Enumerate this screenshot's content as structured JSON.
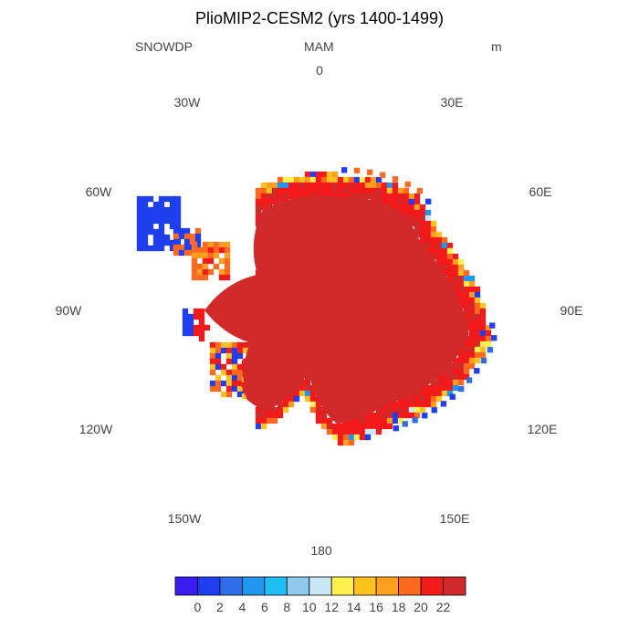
{
  "header": {
    "title": "PlioMIP2-CESM2 (yrs 1400-1499)",
    "variable": "SNOWDP",
    "season": "MAM",
    "units": "m"
  },
  "longitude_labels": {
    "lon_0": "0",
    "lon_30e": "30E",
    "lon_60e": "60E",
    "lon_90e": "90E",
    "lon_120e": "120E",
    "lon_150e": "150E",
    "lon_180": "180",
    "lon_150w": "150W",
    "lon_120w": "120W",
    "lon_90w": "90W",
    "lon_60w": "60W",
    "lon_30w": "30W"
  },
  "colorbar": {
    "colors": [
      "#3b1cf0",
      "#1f3ef0",
      "#2e6ee8",
      "#1f96f0",
      "#1fbff5",
      "#91c8ee",
      "#c8e6f5",
      "#fff04e",
      "#ffc21f",
      "#ff9f1f",
      "#ff6a1f",
      "#f21a1a",
      "#d22a2a"
    ],
    "labels": [
      "0",
      "2",
      "4",
      "6",
      "8",
      "10",
      "12",
      "14",
      "16",
      "18",
      "20",
      "22"
    ]
  },
  "map_colors": {
    "interior": "#d22a2a",
    "outline": "#333333"
  }
}
